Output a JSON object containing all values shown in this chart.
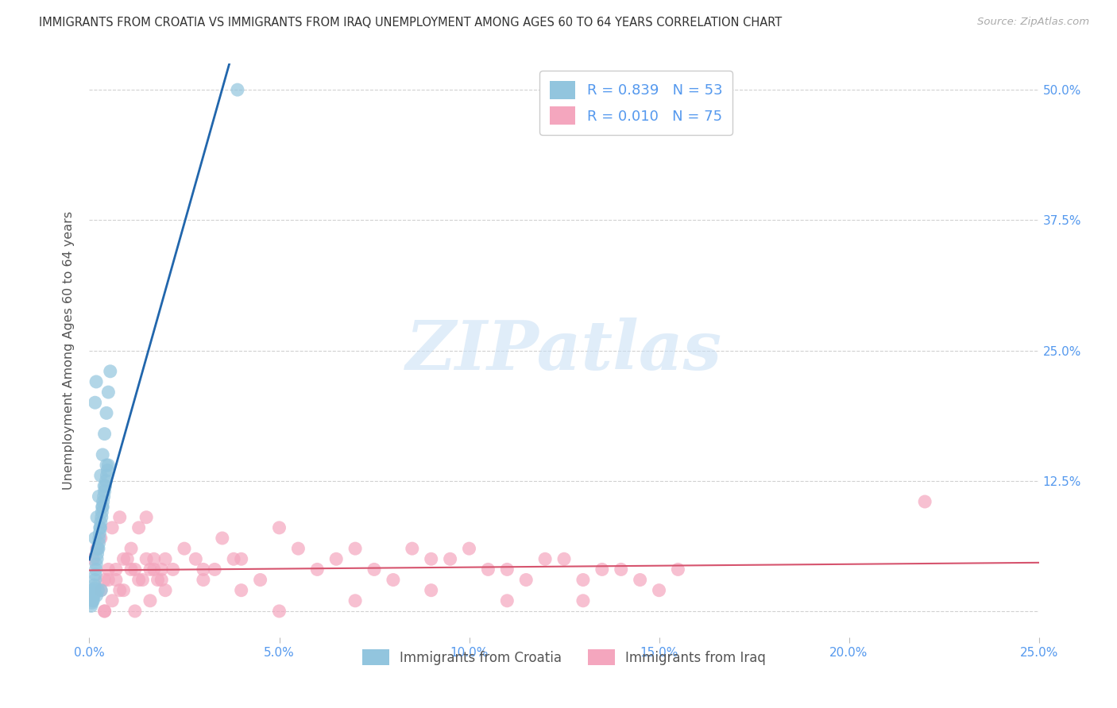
{
  "title": "IMMIGRANTS FROM CROATIA VS IMMIGRANTS FROM IRAQ UNEMPLOYMENT AMONG AGES 60 TO 64 YEARS CORRELATION CHART",
  "source": "Source: ZipAtlas.com",
  "ylabel": "Unemployment Among Ages 60 to 64 years",
  "xlim": [
    0,
    0.25
  ],
  "ylim": [
    -0.025,
    0.525
  ],
  "xtick_vals": [
    0.0,
    0.05,
    0.1,
    0.15,
    0.2,
    0.25
  ],
  "xtick_labels": [
    "0.0%",
    "5.0%",
    "10.0%",
    "15.0%",
    "20.0%",
    "25.0%"
  ],
  "ytick_vals": [
    0.0,
    0.125,
    0.25,
    0.375,
    0.5
  ],
  "ytick_labels_right": [
    "",
    "12.5%",
    "25.0%",
    "37.5%",
    "50.0%"
  ],
  "watermark": "ZIPatlas",
  "legend_croatia_R": "R = 0.839",
  "legend_croatia_N": "N = 53",
  "legend_iraq_R": "R = 0.010",
  "legend_iraq_N": "N = 75",
  "color_croatia": "#92c5de",
  "color_iraq": "#f4a6be",
  "color_reg_croatia": "#2166ac",
  "color_reg_iraq": "#d6546e",
  "color_blue_text": "#5599ee",
  "color_title": "#333333",
  "background": "#ffffff",
  "seed": 12345,
  "croatia_x": [
    0.0008,
    0.001,
    0.0012,
    0.0013,
    0.0015,
    0.0016,
    0.0017,
    0.0018,
    0.0019,
    0.002,
    0.0021,
    0.0022,
    0.0023,
    0.0025,
    0.0026,
    0.0027,
    0.0028,
    0.003,
    0.0031,
    0.0032,
    0.0033,
    0.0035,
    0.0036,
    0.0038,
    0.004,
    0.0042,
    0.0044,
    0.0046,
    0.0048,
    0.005,
    0.0005,
    0.0007,
    0.0009,
    0.0011,
    0.0014,
    0.0024,
    0.0029,
    0.0034,
    0.0039,
    0.0045,
    0.0008,
    0.0015,
    0.002,
    0.0025,
    0.003,
    0.0035,
    0.004,
    0.0045,
    0.005,
    0.0055,
    0.0015,
    0.0018,
    0.039
  ],
  "croatia_y": [
    0.02,
    0.01,
    0.015,
    0.025,
    0.03,
    0.035,
    0.04,
    0.045,
    0.015,
    0.05,
    0.055,
    0.06,
    0.02,
    0.065,
    0.07,
    0.075,
    0.08,
    0.085,
    0.02,
    0.09,
    0.095,
    0.1,
    0.105,
    0.11,
    0.115,
    0.12,
    0.125,
    0.13,
    0.135,
    0.14,
    0.005,
    0.008,
    0.012,
    0.018,
    0.022,
    0.06,
    0.08,
    0.1,
    0.12,
    0.14,
    0.01,
    0.07,
    0.09,
    0.11,
    0.13,
    0.15,
    0.17,
    0.19,
    0.21,
    0.23,
    0.2,
    0.22,
    0.5
  ],
  "iraq_x": [
    0.001,
    0.002,
    0.003,
    0.004,
    0.005,
    0.006,
    0.007,
    0.008,
    0.009,
    0.01,
    0.011,
    0.012,
    0.013,
    0.014,
    0.015,
    0.016,
    0.017,
    0.018,
    0.019,
    0.02,
    0.025,
    0.03,
    0.035,
    0.04,
    0.05,
    0.06,
    0.07,
    0.08,
    0.09,
    0.1,
    0.11,
    0.12,
    0.13,
    0.14,
    0.15,
    0.003,
    0.005,
    0.007,
    0.009,
    0.011,
    0.013,
    0.015,
    0.017,
    0.019,
    0.022,
    0.028,
    0.033,
    0.038,
    0.045,
    0.055,
    0.065,
    0.075,
    0.085,
    0.095,
    0.105,
    0.115,
    0.125,
    0.135,
    0.145,
    0.155,
    0.004,
    0.008,
    0.012,
    0.016,
    0.02,
    0.03,
    0.04,
    0.05,
    0.07,
    0.09,
    0.11,
    0.13,
    0.22,
    0.004,
    0.006
  ],
  "iraq_y": [
    0.05,
    0.06,
    0.07,
    0.03,
    0.04,
    0.08,
    0.03,
    0.09,
    0.02,
    0.05,
    0.06,
    0.04,
    0.08,
    0.03,
    0.09,
    0.04,
    0.05,
    0.03,
    0.04,
    0.05,
    0.06,
    0.04,
    0.07,
    0.05,
    0.08,
    0.04,
    0.06,
    0.03,
    0.05,
    0.06,
    0.04,
    0.05,
    0.03,
    0.04,
    0.02,
    0.02,
    0.03,
    0.04,
    0.05,
    0.04,
    0.03,
    0.05,
    0.04,
    0.03,
    0.04,
    0.05,
    0.04,
    0.05,
    0.03,
    0.06,
    0.05,
    0.04,
    0.06,
    0.05,
    0.04,
    0.03,
    0.05,
    0.04,
    0.03,
    0.04,
    0.0,
    0.02,
    0.0,
    0.01,
    0.02,
    0.03,
    0.02,
    0.0,
    0.01,
    0.02,
    0.01,
    0.01,
    0.105,
    0.0,
    0.01
  ]
}
